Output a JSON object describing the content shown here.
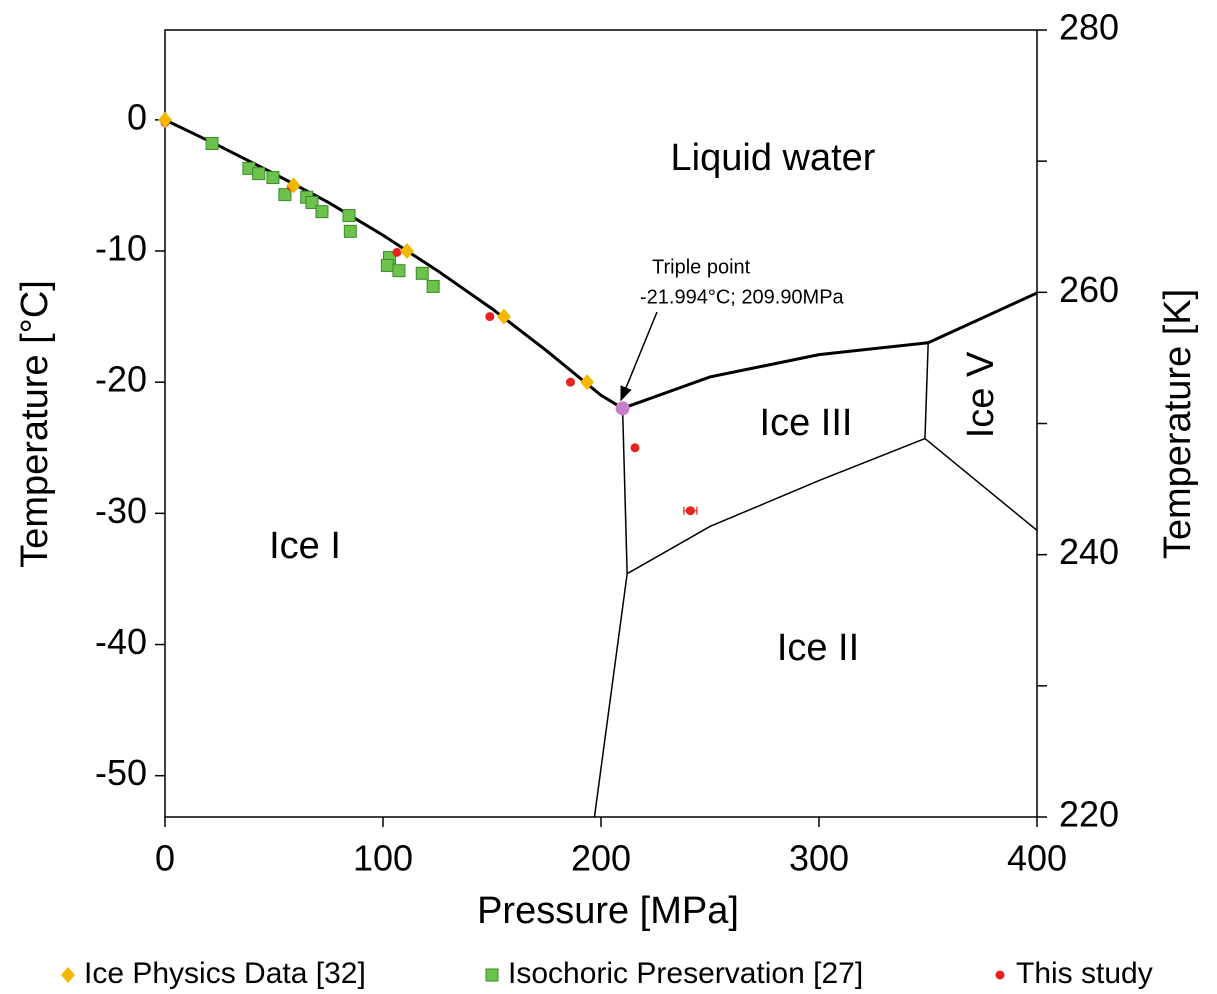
{
  "chart_data": {
    "type": "scatter",
    "x_label": "Pressure [MPa]",
    "y_label": "Temperature [°C]",
    "y2_label": "Temperature [K]",
    "xlim": [
      0,
      400
    ],
    "ylim": [
      -53.15,
      6.85
    ],
    "y2lim": [
      220,
      280
    ],
    "xticks": [
      0,
      100,
      200,
      300,
      400
    ],
    "yticks": [
      0,
      -10,
      -20,
      -30,
      -40,
      -50
    ],
    "y2ticks": [
      220,
      240,
      260,
      280
    ],
    "y2minor_ticks": [
      230,
      250,
      270
    ],
    "series": [
      {
        "name": "Ice Physics Data [32]",
        "color": "#f5b800",
        "marker": "diamond",
        "x": [
          0,
          59,
          111,
          155.5,
          193.6
        ],
        "y": [
          0,
          -5,
          -10,
          -15,
          -20
        ]
      },
      {
        "name": "Isochoric Preservation [27]",
        "color": "#6cc24a",
        "marker": "square",
        "x": [
          21.6,
          38.5,
          43,
          49.5,
          55,
          65,
          67.4,
          72,
          84.4,
          85,
          103,
          102,
          107.3,
          118,
          123
        ],
        "y": [
          -1.8,
          -3.7,
          -4.1,
          -4.4,
          -5.7,
          -5.9,
          -6.3,
          -7,
          -7.3,
          -8.5,
          -10.5,
          -11.1,
          -11.5,
          -11.7,
          -12.7
        ]
      },
      {
        "name": "This study",
        "color": "#e8221e",
        "marker": "circle",
        "x": [
          0,
          58,
          106.4,
          149,
          186,
          215.6,
          241
        ],
        "y": [
          -0.2,
          -5.1,
          -10.1,
          -15,
          -20,
          -25,
          -29.8
        ],
        "x_err": [
          null,
          null,
          null,
          null,
          null,
          null,
          3
        ]
      }
    ],
    "triple_point": {
      "x": 209.9,
      "y": -21.994,
      "color": "#c77dc7"
    },
    "boundaries": [
      {
        "x": [
          0,
          25,
          50,
          75,
          100,
          125,
          150,
          175,
          200,
          209.9
        ],
        "y": [
          0,
          -2.0,
          -4.1,
          -6.3,
          -8.8,
          -11.5,
          -14.4,
          -17.6,
          -21.0,
          -21.994
        ],
        "width": 3
      },
      {
        "x": [
          209.9,
          250,
          300,
          350.1
        ],
        "y": [
          -21.994,
          -19.6,
          -17.9,
          -16.99
        ],
        "width": 3
      },
      {
        "x": [
          350.1,
          400
        ],
        "y": [
          -16.99,
          -13.2
        ],
        "width": 3
      },
      {
        "x": [
          350.1,
          348.6
        ],
        "y": [
          -16.99,
          -24.3
        ],
        "width": 1.5
      },
      {
        "x": [
          209.9,
          212
        ],
        "y": [
          -21.994,
          -34.6
        ],
        "width": 1.5
      },
      {
        "x": [
          212,
          197
        ],
        "y": [
          -34.6,
          -53.15
        ],
        "width": 1.5
      },
      {
        "x": [
          212,
          250,
          300,
          348.6
        ],
        "y": [
          -34.6,
          -31.0,
          -27.5,
          -24.3
        ],
        "width": 1.5
      },
      {
        "x": [
          348.6,
          400
        ],
        "y": [
          -24.3,
          -31.3
        ],
        "width": 1.5
      }
    ],
    "regions": [
      "Liquid water",
      "Ice I",
      "Ice II",
      "Ice III",
      "Ice V"
    ],
    "annotation": {
      "lines": [
        "Triple point",
        "-21.994°C; 209.90MPa"
      ]
    }
  }
}
